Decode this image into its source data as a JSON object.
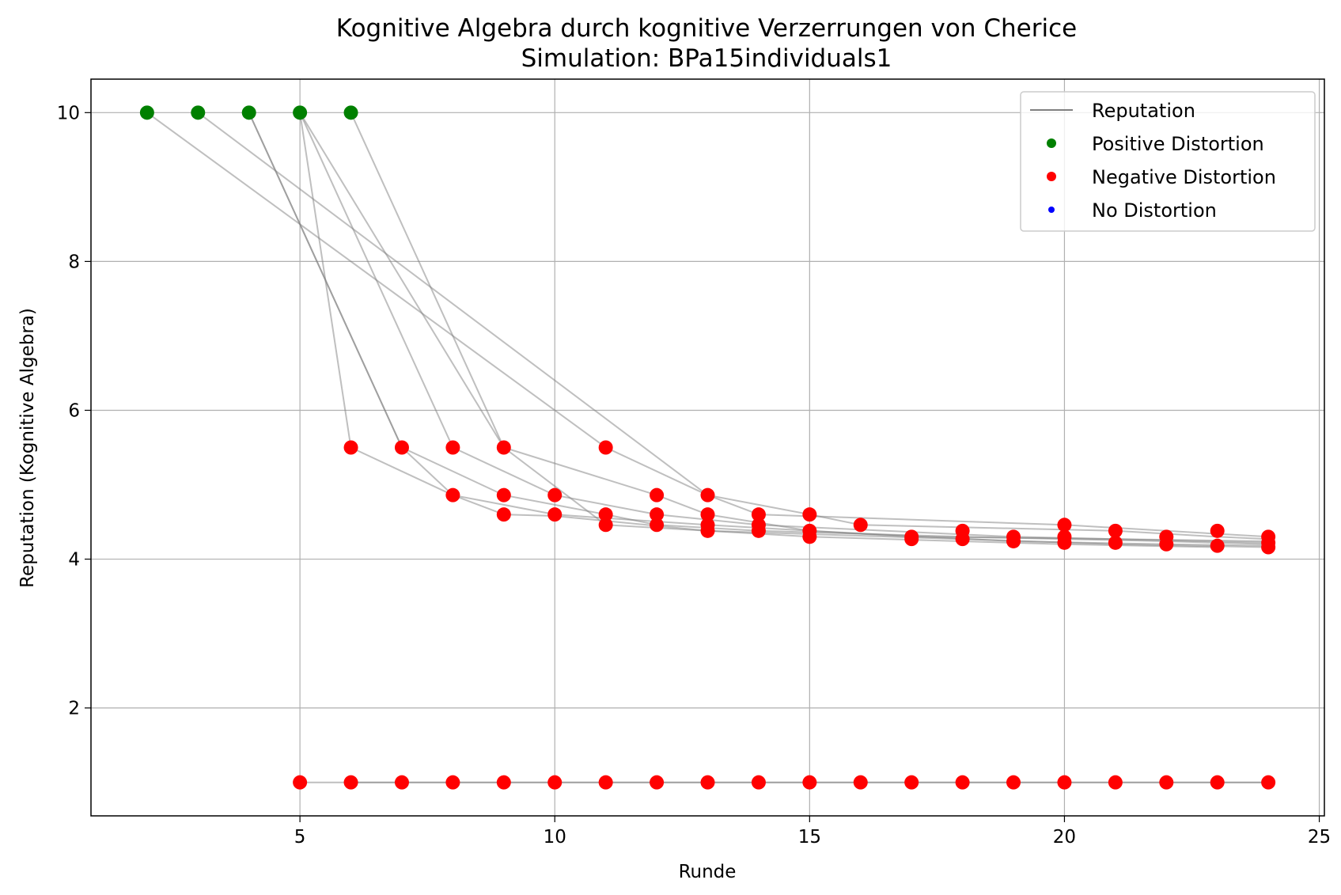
{
  "chart_data": {
    "type": "scatter",
    "title": "Kognitive Algebra durch kognitive Verzerrungen von Cherice",
    "subtitle": "Simulation: BPa15individuals1",
    "xlabel": "Runde",
    "ylabel": "Reputation (Kognitive Algebra)",
    "xlim": [
      0.9,
      25.1
    ],
    "ylim": [
      0.55,
      10.45
    ],
    "xticks": [
      5,
      10,
      15,
      20,
      25
    ],
    "yticks": [
      2,
      4,
      6,
      8,
      10
    ],
    "grid": true,
    "legend_position": "top-right",
    "legend": [
      {
        "label": "Reputation",
        "kind": "line",
        "color": "#808080"
      },
      {
        "label": "Positive Distortion",
        "kind": "dot",
        "color": "#008000"
      },
      {
        "label": "Negative Distortion",
        "kind": "dot",
        "color": "#ff0000"
      },
      {
        "label": "No Distortion",
        "kind": "dot",
        "color": "#0000ff"
      }
    ],
    "series": [
      {
        "points": [
          [
            2,
            10
          ],
          [
            11,
            5.5
          ],
          [
            13,
            4.86
          ],
          [
            14,
            4.6
          ],
          [
            20,
            4.46
          ],
          [
            24,
            4.3
          ]
        ]
      },
      {
        "points": [
          [
            3,
            10
          ],
          [
            13,
            4.86
          ],
          [
            15,
            4.6
          ],
          [
            16,
            4.46
          ],
          [
            21,
            4.38
          ],
          [
            23,
            4.3
          ],
          [
            24,
            4.27
          ]
        ]
      },
      {
        "points": [
          [
            4,
            10
          ],
          [
            7,
            5.5
          ],
          [
            8,
            4.86
          ],
          [
            10,
            4.6
          ],
          [
            11,
            4.55
          ],
          [
            13,
            4.46
          ],
          [
            17,
            4.3
          ],
          [
            20,
            4.28
          ],
          [
            24,
            4.24
          ]
        ]
      },
      {
        "points": [
          [
            4,
            10
          ],
          [
            7,
            5.5
          ],
          [
            9,
            4.86
          ],
          [
            11,
            4.6
          ],
          [
            12,
            4.46
          ],
          [
            14,
            4.38
          ],
          [
            18,
            4.3
          ],
          [
            22,
            4.24
          ],
          [
            24,
            4.2
          ]
        ]
      },
      {
        "points": [
          [
            5,
            10
          ],
          [
            6,
            5.5
          ],
          [
            8,
            4.86
          ],
          [
            9,
            4.6
          ],
          [
            10,
            4.58
          ],
          [
            13,
            4.38
          ],
          [
            18,
            4.27
          ],
          [
            21,
            4.2
          ],
          [
            24,
            4.16
          ]
        ]
      },
      {
        "points": [
          [
            5,
            10
          ],
          [
            8,
            5.5
          ],
          [
            10,
            4.86
          ],
          [
            12,
            4.6
          ],
          [
            14,
            4.46
          ],
          [
            19,
            4.3
          ],
          [
            24,
            4.22
          ]
        ]
      },
      {
        "points": [
          [
            5,
            10
          ],
          [
            9,
            5.5
          ],
          [
            12,
            4.86
          ],
          [
            13,
            4.6
          ],
          [
            15,
            4.38
          ],
          [
            19,
            4.24
          ],
          [
            22,
            4.2
          ],
          [
            24,
            4.18
          ]
        ]
      },
      {
        "points": [
          [
            6,
            10
          ],
          [
            9,
            5.5
          ],
          [
            11,
            4.46
          ],
          [
            13,
            4.38
          ],
          [
            15,
            4.3
          ],
          [
            20,
            4.2
          ],
          [
            23,
            4.16
          ]
        ]
      },
      {
        "points": [
          [
            5,
            1
          ],
          [
            24,
            1
          ]
        ]
      },
      {
        "points": [
          [
            6,
            1
          ],
          [
            24,
            1
          ]
        ]
      }
    ],
    "positive_points": [
      [
        2,
        10
      ],
      [
        3,
        10
      ],
      [
        4,
        10
      ],
      [
        5,
        10
      ],
      [
        6,
        10
      ]
    ],
    "negative_points": [
      [
        6,
        5.5
      ],
      [
        7,
        5.5
      ],
      [
        8,
        5.5
      ],
      [
        9,
        5.5
      ],
      [
        11,
        5.5
      ],
      [
        8,
        4.86
      ],
      [
        9,
        4.86
      ],
      [
        10,
        4.86
      ],
      [
        12,
        4.86
      ],
      [
        13,
        4.86
      ],
      [
        9,
        4.6
      ],
      [
        10,
        4.6
      ],
      [
        11,
        4.6
      ],
      [
        12,
        4.6
      ],
      [
        13,
        4.6
      ],
      [
        14,
        4.6
      ],
      [
        15,
        4.6
      ],
      [
        11,
        4.46
      ],
      [
        12,
        4.46
      ],
      [
        13,
        4.46
      ],
      [
        14,
        4.46
      ],
      [
        16,
        4.46
      ],
      [
        20,
        4.46
      ],
      [
        13,
        4.38
      ],
      [
        14,
        4.38
      ],
      [
        15,
        4.38
      ],
      [
        18,
        4.38
      ],
      [
        21,
        4.38
      ],
      [
        23,
        4.38
      ],
      [
        15,
        4.3
      ],
      [
        17,
        4.3
      ],
      [
        19,
        4.3
      ],
      [
        20,
        4.3
      ],
      [
        22,
        4.3
      ],
      [
        24,
        4.3
      ],
      [
        17,
        4.27
      ],
      [
        18,
        4.27
      ],
      [
        19,
        4.24
      ],
      [
        20,
        4.22
      ],
      [
        21,
        4.22
      ],
      [
        22,
        4.2
      ],
      [
        23,
        4.18
      ],
      [
        24,
        4.22
      ],
      [
        24,
        4.16
      ],
      [
        5,
        1
      ],
      [
        6,
        1
      ],
      [
        7,
        1
      ],
      [
        8,
        1
      ],
      [
        9,
        1
      ],
      [
        10,
        1
      ],
      [
        11,
        1
      ],
      [
        12,
        1
      ],
      [
        13,
        1
      ],
      [
        14,
        1
      ],
      [
        15,
        1
      ],
      [
        16,
        1
      ],
      [
        17,
        1
      ],
      [
        18,
        1
      ],
      [
        19,
        1
      ],
      [
        20,
        1
      ],
      [
        21,
        1
      ],
      [
        22,
        1
      ],
      [
        23,
        1
      ],
      [
        24,
        1
      ]
    ],
    "no_distortion_points": []
  }
}
